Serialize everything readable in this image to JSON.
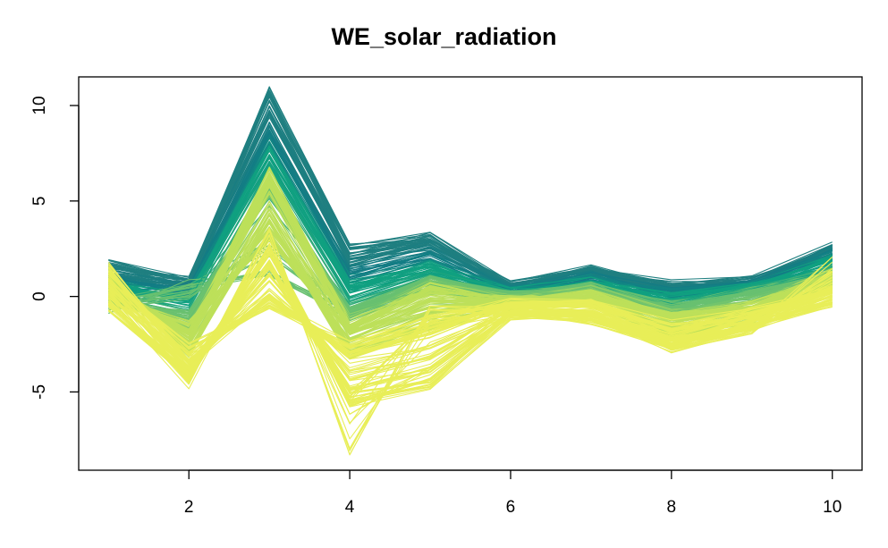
{
  "chart_data": {
    "type": "line",
    "title": "WE_solar_radiation",
    "xlabel": "",
    "ylabel": "",
    "x": [
      1,
      2,
      3,
      4,
      5,
      6,
      7,
      8,
      9,
      10
    ],
    "xlim": [
      0.63,
      10.37
    ],
    "ylim": [
      -9.1,
      11.5
    ],
    "x_ticks": [
      2,
      4,
      6,
      8,
      10
    ],
    "x_tick_labels": [
      "2",
      "4",
      "6",
      "8",
      "10"
    ],
    "y_ticks": [
      -5,
      0,
      5,
      10
    ],
    "y_tick_labels": [
      "-5",
      "0",
      "5",
      "10"
    ],
    "grid": false,
    "legend": "none",
    "colors": {
      "darkest": "#1f7f80",
      "teal": "#10a080",
      "green": "#68c070",
      "lime": "#bde05a",
      "yellow": "#e8ee58"
    },
    "series_count": 300,
    "representative_series": [
      {
        "color": "#1f7f80",
        "values": [
          1.7,
          0.8,
          10.8,
          2.5,
          3.2,
          0.6,
          1.5,
          0.6,
          0.8,
          2.6
        ]
      },
      {
        "color": "#1f7f80",
        "values": [
          1.2,
          0.5,
          9.5,
          1.8,
          2.8,
          0.5,
          1.2,
          0.4,
          0.7,
          2.4
        ]
      },
      {
        "color": "#137c85",
        "values": [
          0.8,
          0.3,
          8.5,
          1.2,
          2.2,
          0.3,
          1.0,
          0.2,
          0.6,
          2.2
        ]
      },
      {
        "color": "#10a080",
        "values": [
          0.5,
          0.0,
          7.8,
          0.6,
          1.6,
          0.2,
          0.8,
          0.0,
          0.5,
          1.9
        ]
      },
      {
        "color": "#10a080",
        "values": [
          0.2,
          -0.3,
          7.0,
          0.0,
          1.2,
          0.1,
          0.6,
          -0.2,
          0.4,
          1.6
        ]
      },
      {
        "color": "#68c070",
        "values": [
          -0.6,
          0.6,
          1.2,
          -1.0,
          0.4,
          0.0,
          0.4,
          -0.5,
          0.2,
          1.2
        ]
      },
      {
        "color": "#68c070",
        "values": [
          -0.3,
          -1.0,
          5.5,
          -0.8,
          0.8,
          0.0,
          0.5,
          -0.8,
          0.0,
          1.0
        ]
      },
      {
        "color": "#bde05a",
        "values": [
          0.5,
          -2.0,
          6.5,
          -1.5,
          0.5,
          -0.2,
          0.2,
          -1.0,
          -0.5,
          1.2
        ]
      },
      {
        "color": "#bde05a",
        "values": [
          1.0,
          -3.0,
          4.0,
          -3.0,
          -1.5,
          -0.5,
          -0.3,
          -2.0,
          -1.2,
          0.8
        ]
      },
      {
        "color": "#bde05a",
        "values": [
          0.0,
          -1.5,
          3.0,
          -2.0,
          -0.5,
          -0.3,
          0.0,
          -1.2,
          -0.8,
          0.6
        ]
      },
      {
        "color": "#e8ee58",
        "values": [
          0.0,
          -4.6,
          3.5,
          -8.3,
          -0.5,
          -0.8,
          -1.0,
          -2.8,
          -1.8,
          1.8
        ]
      },
      {
        "color": "#e8ee58",
        "values": [
          -0.5,
          -4.0,
          2.5,
          -5.5,
          -4.6,
          -1.0,
          -1.2,
          -2.5,
          -1.5,
          -0.3
        ]
      },
      {
        "color": "#e8ee58",
        "values": [
          1.5,
          -3.5,
          0.0,
          -3.0,
          -2.0,
          -0.5,
          -0.5,
          -2.0,
          -1.0,
          0.5
        ]
      },
      {
        "color": "#e8ee58",
        "values": [
          0.8,
          -2.5,
          -0.5,
          -2.5,
          -1.0,
          -0.3,
          -0.2,
          -1.5,
          -0.8,
          0.3
        ]
      }
    ]
  }
}
